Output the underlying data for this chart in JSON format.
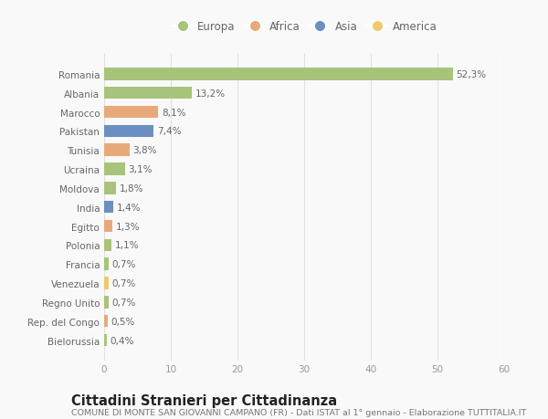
{
  "countries": [
    "Romania",
    "Albania",
    "Marocco",
    "Pakistan",
    "Tunisia",
    "Ucraina",
    "Moldova",
    "India",
    "Egitto",
    "Polonia",
    "Francia",
    "Venezuela",
    "Regno Unito",
    "Rep. del Congo",
    "Bielorussia"
  ],
  "values": [
    52.3,
    13.2,
    8.1,
    7.4,
    3.8,
    3.1,
    1.8,
    1.4,
    1.3,
    1.1,
    0.7,
    0.7,
    0.7,
    0.5,
    0.4
  ],
  "labels": [
    "52,3%",
    "13,2%",
    "8,1%",
    "7,4%",
    "3,8%",
    "3,1%",
    "1,8%",
    "1,4%",
    "1,3%",
    "1,1%",
    "0,7%",
    "0,7%",
    "0,7%",
    "0,5%",
    "0,4%"
  ],
  "continents": [
    "Europa",
    "Europa",
    "Africa",
    "Asia",
    "Africa",
    "Europa",
    "Europa",
    "Asia",
    "Africa",
    "Europa",
    "Europa",
    "America",
    "Europa",
    "Africa",
    "Europa"
  ],
  "continent_colors": {
    "Europa": "#a8c47a",
    "Africa": "#e8a97a",
    "Asia": "#6b8fc0",
    "America": "#f0c96a"
  },
  "legend_order": [
    "Europa",
    "Africa",
    "Asia",
    "America"
  ],
  "xlim": [
    0,
    60
  ],
  "xticks": [
    0,
    10,
    20,
    30,
    40,
    50,
    60
  ],
  "title": "Cittadini Stranieri per Cittadinanza",
  "subtitle": "COMUNE DI MONTE SAN GIOVANNI CAMPANO (FR) - Dati ISTAT al 1° gennaio - Elaborazione TUTTITALIA.IT",
  "bg_color": "#f9f9f9",
  "plot_bg_color": "#f9f9f9",
  "grid_color": "#e0e0e0",
  "bar_height": 0.65,
  "label_fontsize": 7.5,
  "title_fontsize": 10.5,
  "subtitle_fontsize": 6.8,
  "tick_fontsize": 7.5,
  "legend_fontsize": 8.5
}
